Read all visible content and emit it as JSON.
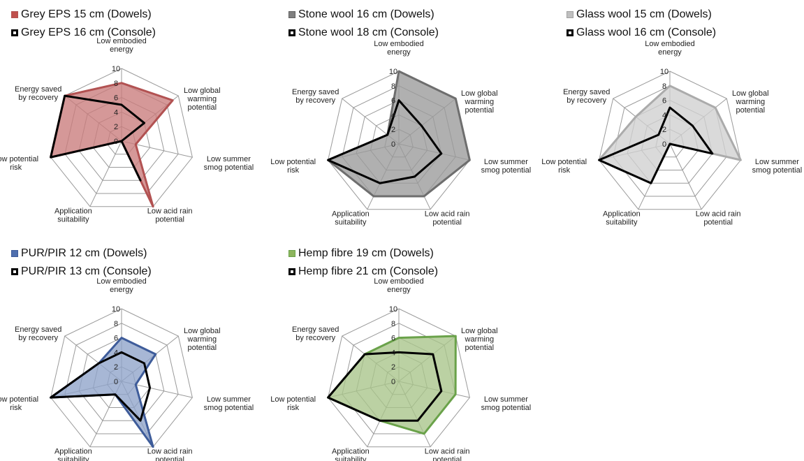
{
  "chart_data": [
    {
      "type": "radar",
      "axes": [
        "Low embodied energy",
        "Low global warming potential",
        "Low summer smog potential",
        "Low acid rain potential",
        "Application suitability",
        "Low potential risk",
        "Energy saved by recovery"
      ],
      "ticks": [
        "0",
        "2",
        "4",
        "6",
        "8",
        "10"
      ],
      "rlim": [
        0,
        10
      ],
      "series": [
        {
          "name": "Grey EPS 15 cm (Dowels)",
          "fill": "#c97b7b",
          "stroke": "#b25252",
          "values": [
            8,
            9,
            2,
            10,
            0,
            10,
            10
          ]
        },
        {
          "name": "Grey EPS 16 cm (Console)",
          "fill": "none",
          "stroke": "#000000",
          "values": [
            5,
            4,
            0,
            6,
            0,
            10,
            10
          ]
        }
      ]
    },
    {
      "type": "radar",
      "axes": [
        "Low embodied energy",
        "Low global warming potential",
        "Low summer smog potential",
        "Low acid rain potential",
        "Application suitability",
        "Low potential risk",
        "Energy saved by recovery"
      ],
      "ticks": [
        "0",
        "2",
        "4",
        "6",
        "8",
        "10"
      ],
      "rlim": [
        0,
        10
      ],
      "series": [
        {
          "name": "Stone wool 16 cm (Dowels)",
          "fill": "#9a9a9a",
          "stroke": "#6e6e6e",
          "values": [
            10,
            10,
            10,
            8,
            8,
            10,
            2
          ]
        },
        {
          "name": "Stone wool 18 cm (Console)",
          "fill": "none",
          "stroke": "#000000",
          "values": [
            6,
            4,
            6,
            5,
            6,
            10,
            2
          ]
        }
      ]
    },
    {
      "type": "radar",
      "axes": [
        "Low embodied energy",
        "Low global warming potential",
        "Low summer smog potential",
        "Low acid rain potential",
        "Application suitability",
        "Low potential risk",
        "Energy saved by recovery"
      ],
      "ticks": [
        "0",
        "2",
        "4",
        "6",
        "8",
        "10"
      ],
      "rlim": [
        0,
        10
      ],
      "series": [
        {
          "name": "Glass wool 15 cm (Dowels)",
          "fill": "#cfcfcf",
          "stroke": "#ababab",
          "values": [
            8,
            8,
            10,
            0,
            6,
            10,
            6
          ]
        },
        {
          "name": "Glass wool 16 cm (Console)",
          "fill": "none",
          "stroke": "#000000",
          "values": [
            5,
            4,
            6,
            0,
            6,
            10,
            2
          ]
        }
      ]
    },
    {
      "type": "radar",
      "axes": [
        "Low embodied energy",
        "Low global warming potential",
        "Low summer smog potential",
        "Low acid rain potential",
        "Application suitability",
        "Low potential risk",
        "Energy saved by recovery"
      ],
      "ticks": [
        "0",
        "2",
        "4",
        "6",
        "8",
        "10"
      ],
      "rlim": [
        0,
        10
      ],
      "series": [
        {
          "name": "PUR/PIR 12 cm (Dowels)",
          "fill": "#8ea3c9",
          "stroke": "#3e5c9a",
          "values": [
            6,
            6,
            2,
            10,
            2,
            10,
            4
          ]
        },
        {
          "name": "PUR/PIR 13 cm (Console)",
          "fill": "none",
          "stroke": "#000000",
          "values": [
            4,
            4,
            4,
            6,
            2,
            10,
            4
          ]
        }
      ]
    },
    {
      "type": "radar",
      "axes": [
        "Low embodied energy",
        "Low global warming potential",
        "Low summer smog potential",
        "Low acid rain potential",
        "Application suitability",
        "Low potential risk",
        "Energy saved by recovery"
      ],
      "ticks": [
        "0",
        "2",
        "4",
        "6",
        "8",
        "10"
      ],
      "rlim": [
        0,
        10
      ],
      "series": [
        {
          "name": "Hemp fibre 19 cm (Dowels)",
          "fill": "#a8c489",
          "stroke": "#6aa24a",
          "values": [
            6,
            10,
            8,
            8,
            6,
            10,
            6
          ]
        },
        {
          "name": "Hemp fibre 21 cm (Console)",
          "fill": "none",
          "stroke": "#000000",
          "values": [
            4,
            6,
            6,
            6,
            6,
            10,
            6
          ]
        }
      ]
    }
  ]
}
